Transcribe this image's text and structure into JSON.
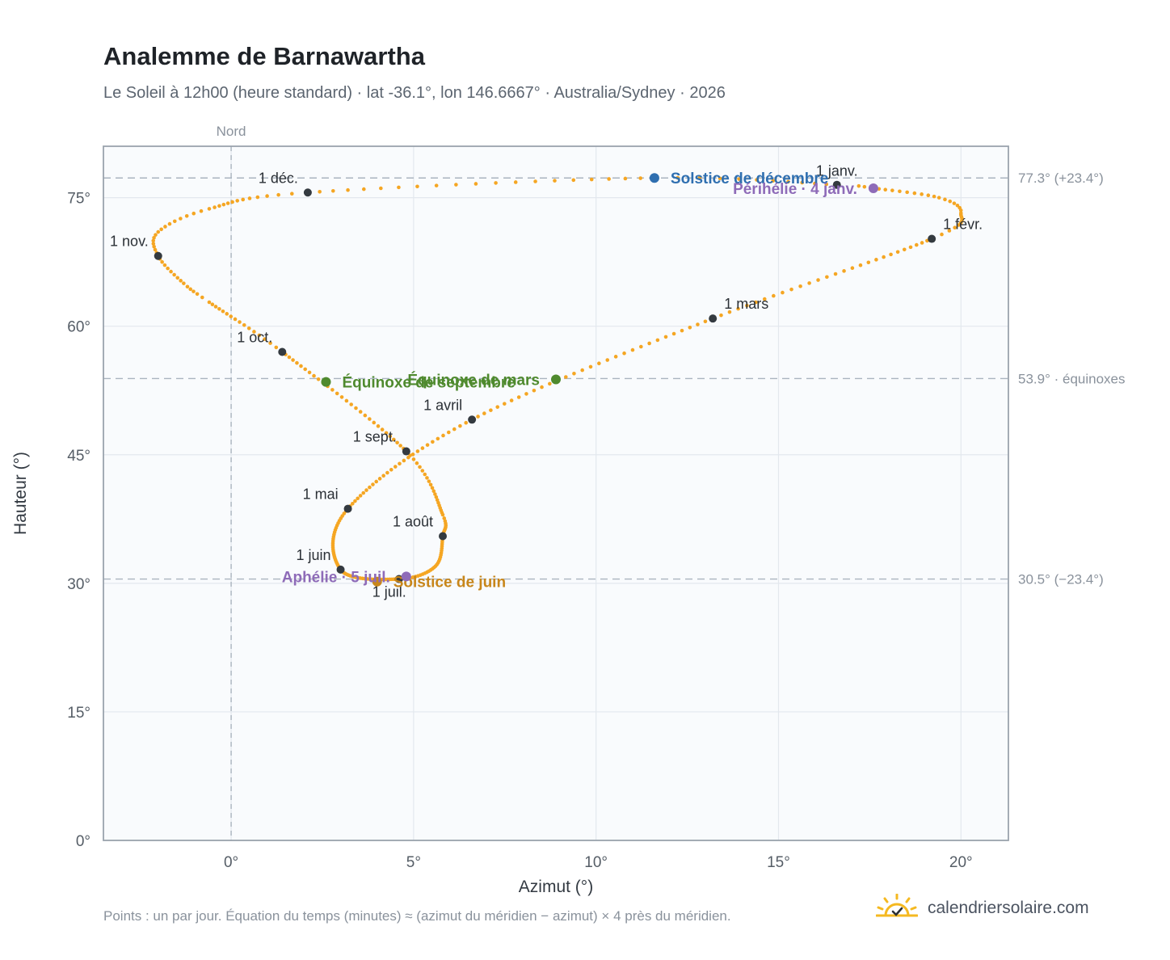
{
  "header": {
    "title": "Analemme de Barnawartha",
    "subtitle": "Le Soleil à 12h00 (heure standard) · lat -36.1°, lon 146.6667° · Australia/Sydney · 2026"
  },
  "footer": {
    "note": "Points : un par jour. Équation du temps (minutes) ≈ (azimut du méridien − azimut) × 4 près du méridien.",
    "brand": "calendriersolaire.com"
  },
  "colors": {
    "curve": "#f5a623",
    "month_marker": "#343a40",
    "equinox": "#4f8a2e",
    "solstice_june": "#c8861a",
    "solstice_december": "#2f6fb0",
    "perihelion_aphelion": "#8e6bb8",
    "plot_background": "#f9fbfd",
    "grid": "#e3e8ee",
    "reference_line": "#aab4bf",
    "brand_sun": "#f5b921"
  },
  "chart_data": {
    "type": "scatter",
    "xlabel": "Azimut (°)",
    "ylabel": "Hauteur (°)",
    "xlim": [
      -3.5,
      21.3
    ],
    "ylim": [
      0,
      81
    ],
    "xticks": [
      0,
      5,
      10,
      15,
      20
    ],
    "yticks": [
      0,
      15,
      30,
      45,
      60,
      75
    ],
    "xtick_labels": [
      "0°",
      "5°",
      "10°",
      "15°",
      "20°"
    ],
    "ytick_labels": [
      "0°",
      "15°",
      "30°",
      "45°",
      "60°",
      "75°"
    ],
    "grid": true,
    "north_line": {
      "x": 0,
      "label": "Nord"
    },
    "reference_lines": [
      {
        "y": 77.3,
        "label": "77.3° (+23.4°)"
      },
      {
        "y": 53.9,
        "label": "53.9° · équinoxes"
      },
      {
        "y": 30.5,
        "label": "30.5° (−23.4°)"
      }
    ],
    "anchor_points": [
      {
        "date": "1 janv.",
        "day": 1,
        "azimuth": 16.6,
        "altitude": 76.5
      },
      {
        "date": "1 févr.",
        "day": 32,
        "azimuth": 19.2,
        "altitude": 70.2
      },
      {
        "date": "1 mars",
        "day": 60,
        "azimuth": 13.2,
        "altitude": 60.9
      },
      {
        "date": "1 avril",
        "day": 91,
        "azimuth": 6.6,
        "altitude": 49.1
      },
      {
        "date": "1 mai",
        "day": 121,
        "azimuth": 3.2,
        "altitude": 38.7
      },
      {
        "date": "1 juin",
        "day": 152,
        "azimuth": 3.0,
        "altitude": 31.6
      },
      {
        "date": "1 juil.",
        "day": 182,
        "azimuth": 4.6,
        "altitude": 30.5
      },
      {
        "date": "1 août",
        "day": 213,
        "azimuth": 5.8,
        "altitude": 35.5
      },
      {
        "date": "1 sept.",
        "day": 244,
        "azimuth": 4.8,
        "altitude": 45.4
      },
      {
        "date": "1 oct.",
        "day": 274,
        "azimuth": 1.4,
        "altitude": 57.0
      },
      {
        "date": "1 nov.",
        "day": 305,
        "azimuth": -2.0,
        "altitude": 68.2
      },
      {
        "date": "1 déc.",
        "day": 335,
        "azimuth": 2.1,
        "altitude": 75.6
      },
      {
        "date": "",
        "day": 366,
        "azimuth": 16.6,
        "altitude": 76.5
      }
    ],
    "extra_shape_points": [
      {
        "day": 4,
        "azimuth": 17.6,
        "altitude": 76.1
      },
      {
        "day": 14,
        "azimuth": 19.4,
        "altitude": 75.0
      },
      {
        "day": 21,
        "azimuth": 20.0,
        "altitude": 73.2
      },
      {
        "day": 198,
        "azimuth": 5.6,
        "altitude": 32.0
      },
      {
        "day": 224,
        "azimuth": 5.8,
        "altitude": 38.0
      },
      {
        "day": 290,
        "azimuth": -0.6,
        "altitude": 62.8
      },
      {
        "day": 296,
        "azimuth": -1.3,
        "altitude": 65.0
      },
      {
        "day": 313,
        "azimuth": -2.0,
        "altitude": 71.0
      },
      {
        "day": 322,
        "azimuth": -0.6,
        "altitude": 73.7
      },
      {
        "day": 355,
        "azimuth": 11.6,
        "altitude": 77.3
      }
    ],
    "month_markers": [
      {
        "label": "1 janv.",
        "azimuth": 16.6,
        "altitude": 76.5,
        "label_side": "above"
      },
      {
        "label": "1 févr.",
        "azimuth": 19.2,
        "altitude": 70.2,
        "label_side": "right"
      },
      {
        "label": "1 mars",
        "azimuth": 13.2,
        "altitude": 60.9,
        "label_side": "right"
      },
      {
        "label": "1 avril",
        "azimuth": 6.6,
        "altitude": 49.1,
        "label_side": "left"
      },
      {
        "label": "1 mai",
        "azimuth": 3.2,
        "altitude": 38.7,
        "label_side": "left"
      },
      {
        "label": "1 juin",
        "azimuth": 3.0,
        "altitude": 31.6,
        "label_side": "left"
      },
      {
        "label": "1 juil.",
        "azimuth": 4.6,
        "altitude": 30.5,
        "label_side": "below"
      },
      {
        "label": "1 août",
        "azimuth": 5.8,
        "altitude": 35.5,
        "label_side": "left"
      },
      {
        "label": "1 sept.",
        "azimuth": 4.8,
        "altitude": 45.4,
        "label_side": "left"
      },
      {
        "label": "1 oct.",
        "azimuth": 1.4,
        "altitude": 57.0,
        "label_side": "left"
      },
      {
        "label": "1 nov.",
        "azimuth": -2.0,
        "altitude": 68.2,
        "label_side": "left"
      },
      {
        "label": "1 déc.",
        "azimuth": 2.1,
        "altitude": 75.6,
        "label_side": "left"
      }
    ],
    "events": [
      {
        "label": "Solstice de décembre",
        "azimuth": 11.6,
        "altitude": 77.3,
        "color_key": "solstice_december",
        "label_side": "right"
      },
      {
        "label": "Périhélie · 4 janv.",
        "azimuth": 17.6,
        "altitude": 76.1,
        "color_key": "perihelion_aphelion",
        "label_side": "left"
      },
      {
        "label": "Équinoxe de mars",
        "azimuth": 8.9,
        "altitude": 53.8,
        "color_key": "equinox",
        "label_side": "left"
      },
      {
        "label": "Équinoxe de septembre",
        "azimuth": 2.6,
        "altitude": 53.5,
        "color_key": "equinox",
        "label_side": "right"
      },
      {
        "label": "Solstice de juin",
        "azimuth": 4.0,
        "altitude": 30.2,
        "color_key": "solstice_june",
        "label_side": "right"
      },
      {
        "label": "Aphélie · 5 juil.",
        "azimuth": 4.8,
        "altitude": 30.8,
        "color_key": "perihelion_aphelion",
        "label_side": "left"
      }
    ]
  }
}
